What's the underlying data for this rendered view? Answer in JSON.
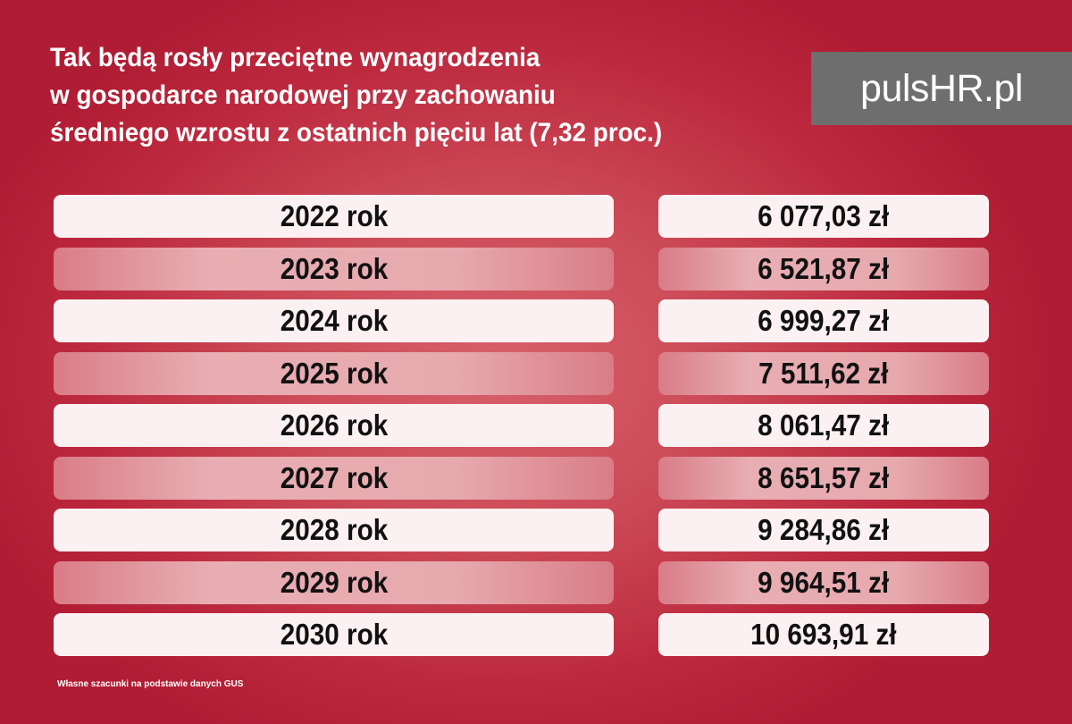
{
  "title_lines": [
    "Tak będą rosły przeciętne wynagrodzenia",
    "w gospodarce narodowej przy zachowaniu",
    "średniego wzrostu z ostatnich pięciu lat (7,32 proc.)"
  ],
  "logo": "pulsHR.pl",
  "footnote": "Własne szacunki na podstawie danych GUS",
  "colors": {
    "background": "#b01c33",
    "row_light": "#fcf1f2",
    "row_dark": "#e6a9ae",
    "logo_bg": "#6e6e6e"
  },
  "chart_data": {
    "type": "table",
    "columns": [
      "",
      ""
    ],
    "rows": [
      [
        "2022 rok",
        "6 077,03 zł"
      ],
      [
        "2023 rok",
        "6 521,87 zł"
      ],
      [
        "2024 rok",
        "6 999,27 zł"
      ],
      [
        "2025 rok",
        "7 511,62 zł"
      ],
      [
        "2026 rok",
        "8 061,47 zł"
      ],
      [
        "2027 rok",
        "8 651,57 zł"
      ],
      [
        "2028 rok",
        "9 284,86 zł"
      ],
      [
        "2029 rok",
        "9 964,51 zł"
      ],
      [
        "2030 rok",
        "10 693,91 zł"
      ]
    ]
  }
}
